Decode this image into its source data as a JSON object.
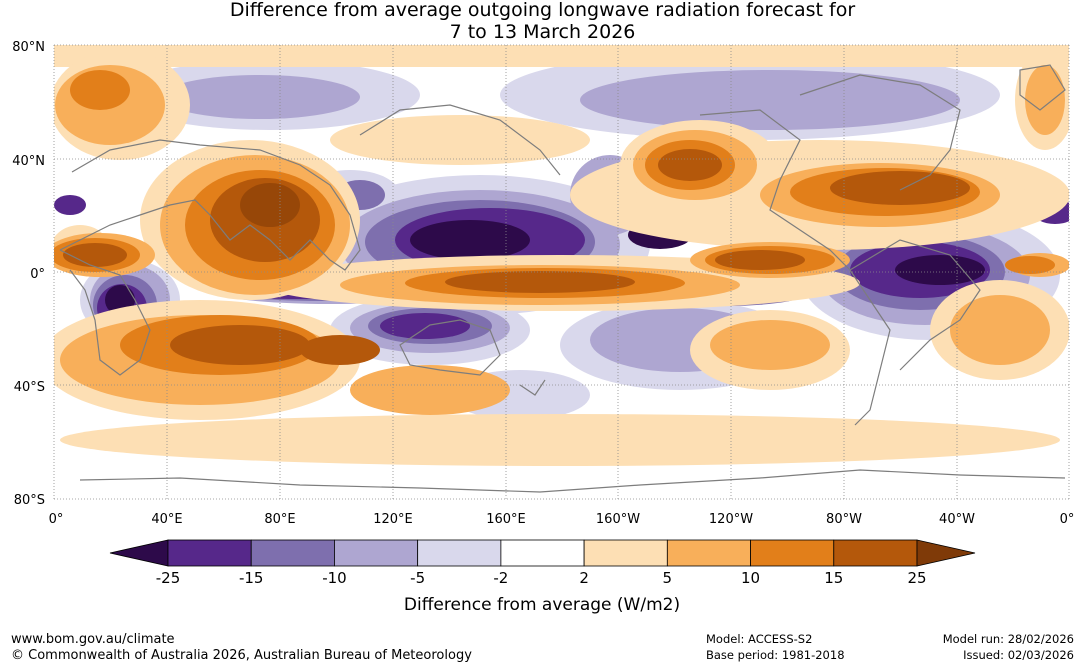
{
  "title": {
    "line1": "Difference from average outgoing longwave radiation forecast for",
    "line2": "7 to 13 March 2026"
  },
  "map": {
    "lat_labels": [
      "80°N",
      "40°N",
      "0°",
      "40°S",
      "80°S"
    ],
    "lon_labels": [
      "0°",
      "40°E",
      "80°E",
      "120°E",
      "160°E",
      "160°W",
      "120°W",
      "80°W",
      "40°W",
      "0°"
    ]
  },
  "legend": {
    "unit_label": "Difference from average (W/m2)",
    "levels": [
      "-25",
      "-15",
      "-10",
      "-5",
      "-2",
      "2",
      "5",
      "10",
      "15",
      "25"
    ],
    "colors": [
      "#2d0a4a",
      "#56288a",
      "#7e6fae",
      "#aea6d1",
      "#d9d8ec",
      "#ffffff",
      "#fddfb4",
      "#f8af5a",
      "#e27f1a",
      "#b4580b",
      "#7f3a08"
    ]
  },
  "footer": {
    "website": "www.bom.gov.au/climate",
    "copyright": "© Commonwealth of Australia 2026, Australian Bureau of Meteorology",
    "model": "Model: ACCESS-S2",
    "base_period": "Base period: 1981-2018",
    "model_run": "Model run: 28/02/2026",
    "issued": "Issued: 02/03/2026"
  }
}
